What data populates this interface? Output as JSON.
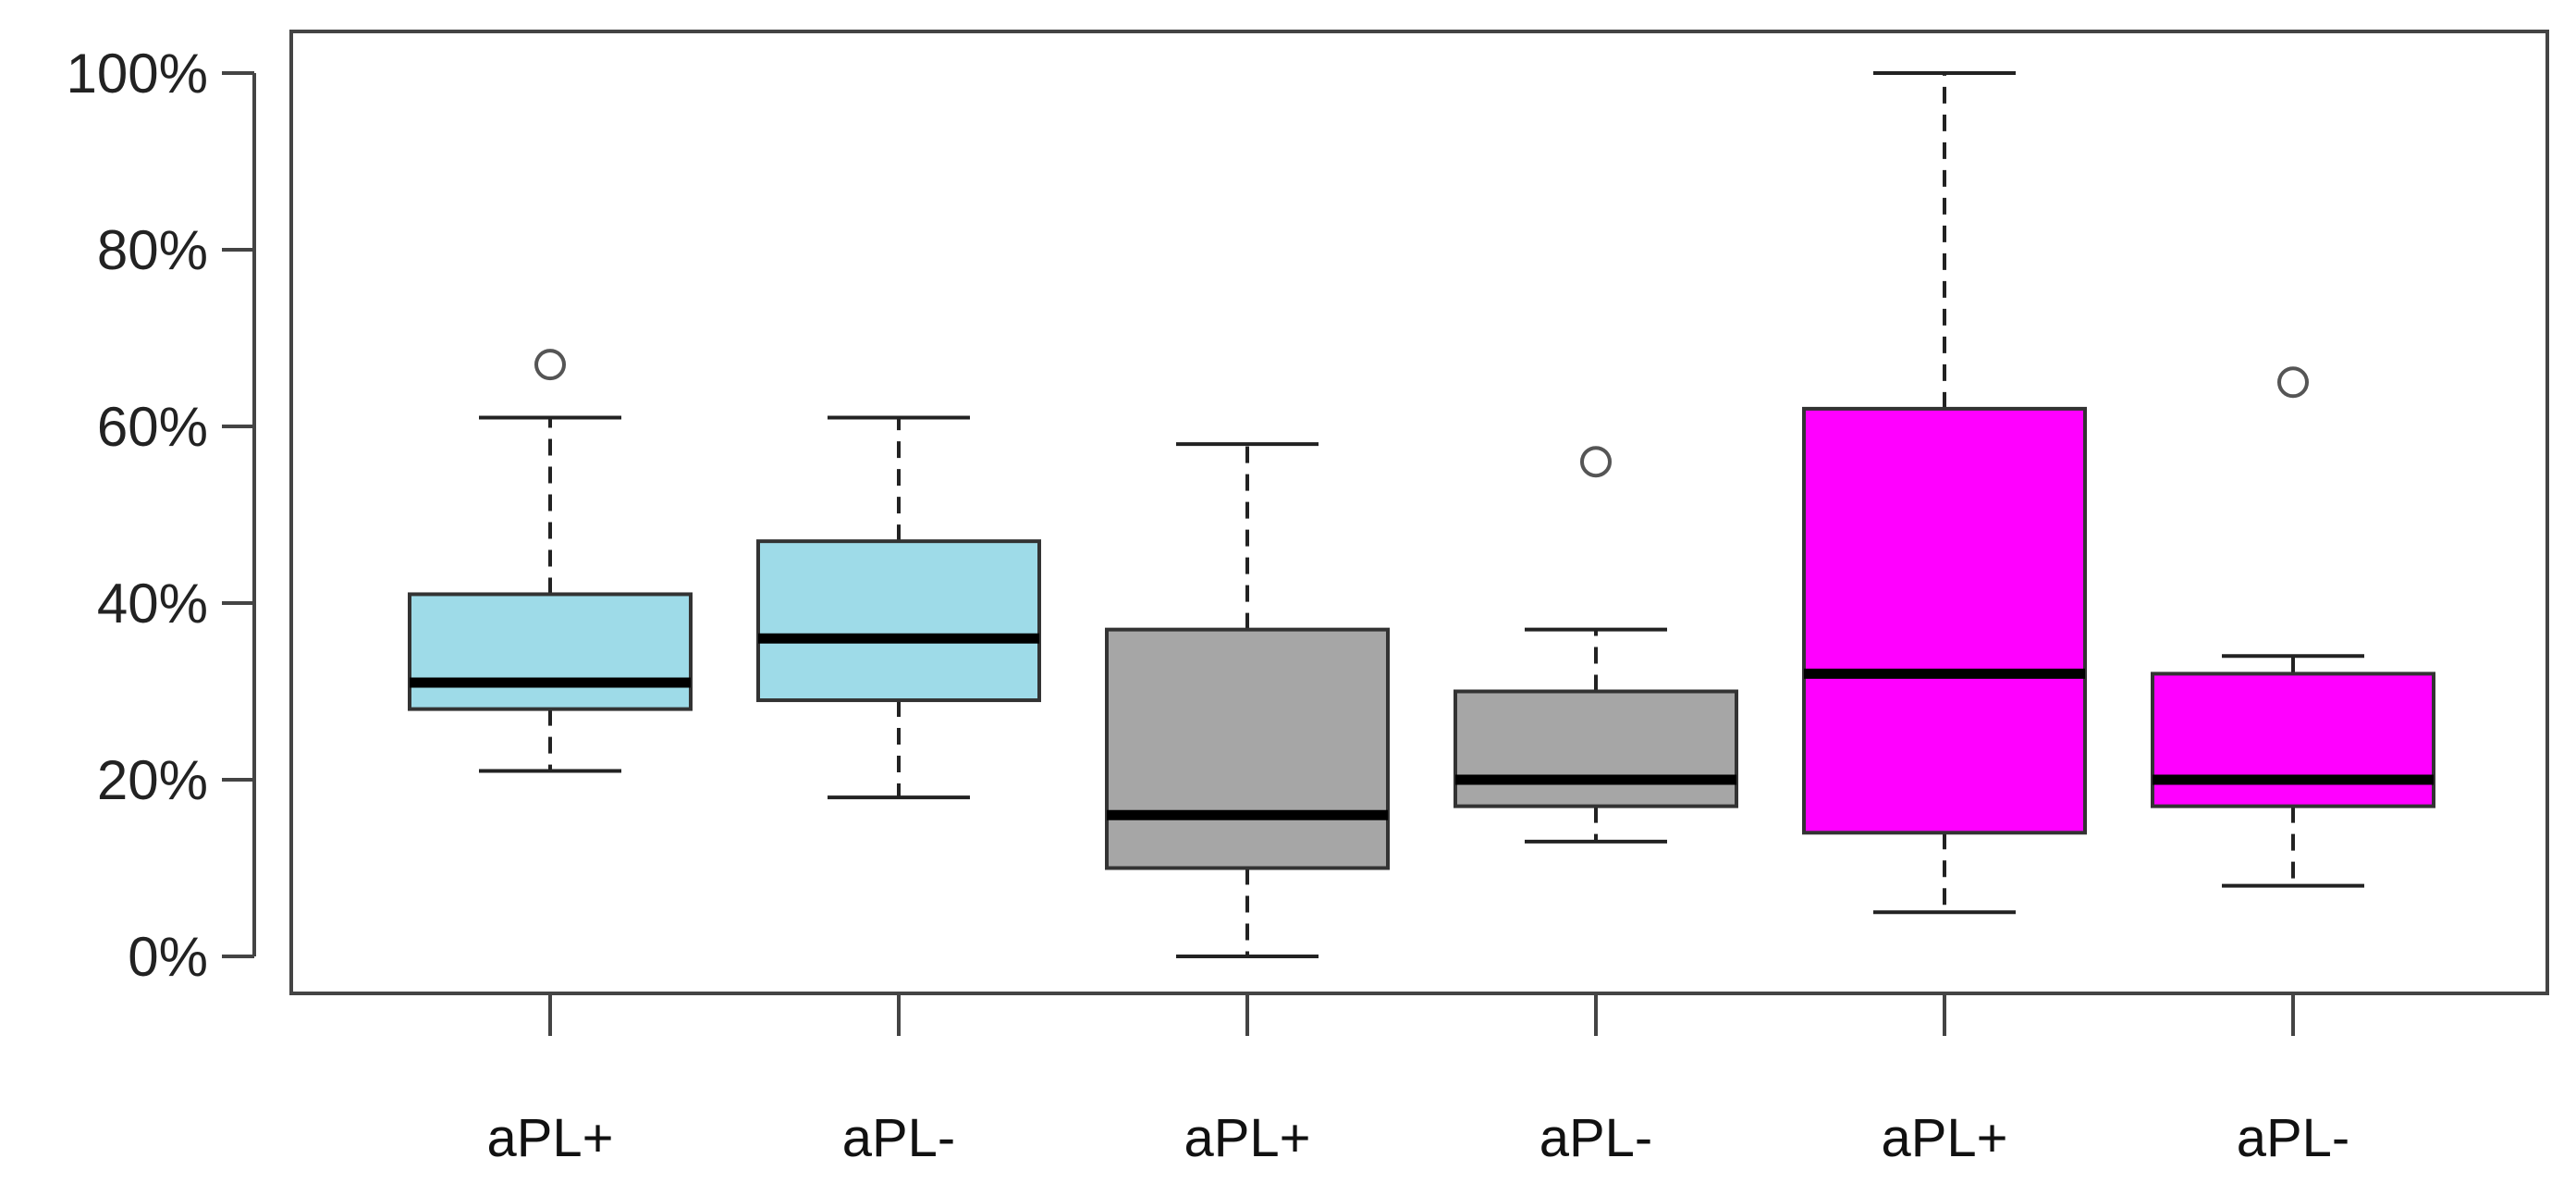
{
  "chart_data": {
    "type": "box",
    "title": "",
    "xlabel": "",
    "ylabel": "",
    "ylim": [
      0,
      100
    ],
    "yticks": [
      0,
      20,
      40,
      60,
      80,
      100
    ],
    "ytick_labels": [
      "0%",
      "20%",
      "40%",
      "60%",
      "80%",
      "100%"
    ],
    "grid": false,
    "legend": "none",
    "categories": [
      "aPL+",
      "aPL-",
      "aPL+",
      "aPL-",
      "aPL+",
      "aPL-"
    ],
    "boxes": [
      {
        "label": "aPL+",
        "color": "#9edbe8",
        "whisker_low": 21,
        "q1": 28,
        "median": 31,
        "q3": 41,
        "whisker_high": 61,
        "outliers": [
          67
        ]
      },
      {
        "label": "aPL-",
        "color": "#9edbe8",
        "whisker_low": 18,
        "q1": 29,
        "median": 36,
        "q3": 47,
        "whisker_high": 61,
        "outliers": []
      },
      {
        "label": "aPL+",
        "color": "#a6a6a6",
        "whisker_low": 0,
        "q1": 10,
        "median": 16,
        "q3": 37,
        "whisker_high": 58,
        "outliers": []
      },
      {
        "label": "aPL-",
        "color": "#a6a6a6",
        "whisker_low": 13,
        "q1": 17,
        "median": 20,
        "q3": 30,
        "whisker_high": 37,
        "outliers": [
          56
        ]
      },
      {
        "label": "aPL+",
        "color": "#ff00ff",
        "whisker_low": 5,
        "q1": 14,
        "median": 32,
        "q3": 62,
        "whisker_high": 100,
        "outliers": []
      },
      {
        "label": "aPL-",
        "color": "#ff00ff",
        "whisker_low": 8,
        "q1": 17,
        "median": 20,
        "q3": 32,
        "whisker_high": 34,
        "outliers": [
          65
        ]
      }
    ]
  }
}
